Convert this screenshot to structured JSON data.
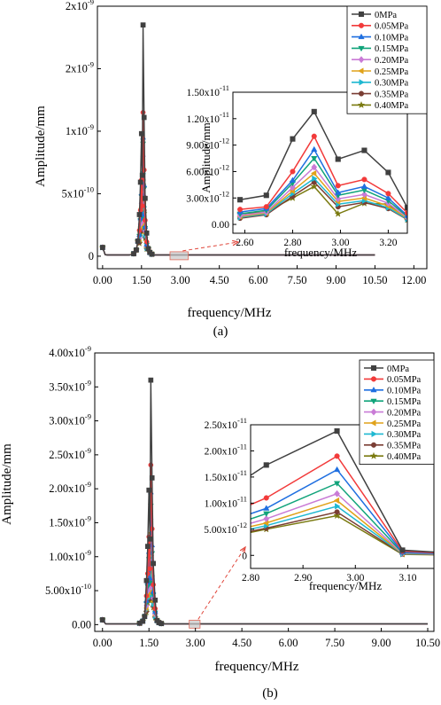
{
  "figure": {
    "panel_a_label": "(a)",
    "panel_b_label": "(b)"
  },
  "chart_data": [
    {
      "panel": "(a)",
      "type": "line",
      "xlabel": "frequency/MHz",
      "ylabel": "Amplitude/mm",
      "xlim": [
        -0.2,
        12.5
      ],
      "ylim": [
        -1e-10,
        2e-09
      ],
      "x_ticks": [
        0,
        1.5,
        3,
        4.5,
        6,
        7.5,
        9,
        10.5,
        12
      ],
      "x_tick_labels": [
        "0.00",
        "1.50",
        "3.00",
        "4.50",
        "6.00",
        "7.50",
        "9.00",
        "10.50",
        "12.00"
      ],
      "y_ticks": [
        0,
        5e-10,
        1e-09,
        1.5e-09,
        2e-09
      ],
      "y_tick_labels": [
        {
          "mant": "0",
          "exp": ""
        },
        {
          "mant": "5x10",
          "exp": "-10"
        },
        {
          "mant": "1x10",
          "exp": "-9"
        },
        {
          "mant": "2x10",
          "exp": "-9"
        },
        {
          "mant": "2x10",
          "exp": "-9"
        }
      ],
      "legend": {
        "position": "top-right",
        "entries": [
          "0MPa",
          "0.05MPa",
          "0.10MPa",
          "0.15MPa",
          "0.20MPa",
          "0.25MPa",
          "0.30MPa",
          "0.35MPa",
          "0.40MPa"
        ]
      },
      "peak_x": 1.56,
      "peak_values": [
        1.85e-09,
        1.15e-09,
        9.5e-10,
        9e-10,
        8e-10,
        7.3e-10,
        6.6e-10,
        6.1e-10,
        5.7e-10
      ],
      "side_peak_fraction": 0.53,
      "baseline": 1e-11,
      "x_end": 10.5,
      "zoom_box": {
        "x": [
          2.6,
          3.3
        ]
      },
      "inset": {
        "xlabel": "frequency/MHz",
        "ylabel": "Amplitude/mm",
        "xlim": [
          2.55,
          3.28
        ],
        "ylim": [
          -1e-12,
          1.5e-11
        ],
        "x_ticks": [
          2.6,
          2.8,
          3.0,
          3.2
        ],
        "x_tick_labels": [
          "2.60",
          "2.80",
          "3.00",
          "3.20"
        ],
        "y_ticks": [
          0,
          3e-12,
          6e-12,
          9e-12,
          1.2e-11,
          1.5e-11
        ],
        "y_tick_labels": [
          {
            "mant": "0.00",
            "exp": ""
          },
          {
            "mant": "3.00x10",
            "exp": "-12"
          },
          {
            "mant": "6.00x10",
            "exp": "-12"
          },
          {
            "mant": "9.00x10",
            "exp": "-12"
          },
          {
            "mant": "1.20x10",
            "exp": "-11"
          },
          {
            "mant": "1.50x10",
            "exp": "-11"
          }
        ],
        "x": [
          2.58,
          2.69,
          2.8,
          2.89,
          2.99,
          3.1,
          3.2,
          3.28
        ],
        "series": [
          {
            "name": "0MPa",
            "values": [
              2.8e-12,
              3.3e-12,
              9.7e-12,
              1.28e-11,
              7.4e-12,
              8.4e-12,
              5.9e-12,
              1.9e-12
            ]
          },
          {
            "name": "0.05MPa",
            "values": [
              1.7e-12,
              2e-12,
              6e-12,
              1e-11,
              4.4e-12,
              5.1e-12,
              3.5e-12,
              1.3e-12
            ]
          },
          {
            "name": "0.10MPa",
            "values": [
              1.4e-12,
              1.8e-12,
              5e-12,
              8.5e-12,
              3.6e-12,
              4.3e-12,
              3e-12,
              1e-12
            ]
          },
          {
            "name": "0.15MPa",
            "values": [
              1.2e-12,
              1.6e-12,
              4.7e-12,
              7.5e-12,
              3.3e-12,
              3.9e-12,
              2.7e-12,
              9e-13
            ]
          },
          {
            "name": "0.20MPa",
            "values": [
              1e-12,
              1.4e-12,
              4.2e-12,
              6.5e-12,
              2.9e-12,
              3.4e-12,
              2.4e-12,
              8e-13
            ]
          },
          {
            "name": "0.25MPa",
            "values": [
              9e-13,
              1.3e-12,
              3.8e-12,
              5.8e-12,
              2.6e-12,
              3e-12,
              2.1e-12,
              7e-13
            ]
          },
          {
            "name": "0.30MPa",
            "values": [
              8e-13,
              1.2e-12,
              3.5e-12,
              5.2e-12,
              2.3e-12,
              2.7e-12,
              1.9e-12,
              6e-13
            ]
          },
          {
            "name": "0.35MPa",
            "values": [
              7e-13,
              1.1e-12,
              3.2e-12,
              4.8e-12,
              2e-12,
              2.5e-12,
              1.8e-12,
              5.5e-13
            ]
          },
          {
            "name": "0.40MPa",
            "values": [
              1.2e-12,
              1.4e-12,
              3e-12,
              4.3e-12,
              1.2e-12,
              2.4e-12,
              2.3e-12,
              5e-13
            ]
          }
        ]
      }
    },
    {
      "panel": "(b)",
      "type": "line",
      "xlabel": "frequency/MHz",
      "ylabel": "Amplitude/mm",
      "xlim": [
        -0.25,
        10.7
      ],
      "ylim": [
        -1e-10,
        4e-09
      ],
      "x_ticks": [
        0,
        1.5,
        3,
        4.5,
        6,
        7.5,
        9,
        10.5
      ],
      "x_tick_labels": [
        "0.00",
        "1.50",
        "3.00",
        "4.50",
        "6.00",
        "7.50",
        "9.00",
        "10.50"
      ],
      "y_ticks": [
        0,
        5e-10,
        1e-09,
        1.5e-09,
        2e-09,
        2.5e-09,
        3e-09,
        3.5e-09,
        4e-09
      ],
      "y_tick_labels": [
        {
          "mant": "0.00",
          "exp": ""
        },
        {
          "mant": "5.00x10",
          "exp": "-10"
        },
        {
          "mant": "1.00x10",
          "exp": "-9"
        },
        {
          "mant": "1.50x10",
          "exp": "-9"
        },
        {
          "mant": "2.00x10",
          "exp": "-9"
        },
        {
          "mant": "2.50x10",
          "exp": "-9"
        },
        {
          "mant": "3.00x10",
          "exp": "-9"
        },
        {
          "mant": "3.50x10",
          "exp": "-9"
        },
        {
          "mant": "4.00x10",
          "exp": "-9"
        }
      ],
      "legend": {
        "position": "top-right",
        "entries": [
          "0MPa",
          "0.05MPa",
          "0.10MPa",
          "0.15MPa",
          "0.20MPa",
          "0.25MPa",
          "0.30MPa",
          "0.35MPa",
          "0.40MPa"
        ]
      },
      "peak_x": 1.56,
      "peak_values": [
        3.6e-09,
        2.35e-09,
        1.95e-09,
        1.75e-09,
        1.55e-09,
        1.35e-09,
        1.2e-09,
        1.1e-09,
        1e-09
      ],
      "side_peak_fraction": 0.55,
      "baseline": 1e-11,
      "x_end": 10.5,
      "zoom_box": {
        "x": [
          2.8,
          3.15
        ]
      },
      "inset": {
        "xlabel": "frequency/MHz",
        "ylabel": "",
        "xlim": [
          2.8,
          3.15
        ],
        "ylim": [
          -2.5e-12,
          2.5e-11
        ],
        "x_ticks": [
          2.8,
          2.9,
          3.0,
          3.1
        ],
        "x_tick_labels": [
          "2.80",
          "2.90",
          "3.00",
          "3.10"
        ],
        "y_ticks": [
          0,
          5e-12,
          1e-11,
          1.5e-11,
          2e-11,
          2.5e-11
        ],
        "y_tick_labels": [
          {
            "mant": "0",
            "exp": ""
          },
          {
            "mant": "5.00x10",
            "exp": "-12"
          },
          {
            "mant": "1.00x10",
            "exp": "-11"
          },
          {
            "mant": "1.50x10",
            "exp": "-11"
          },
          {
            "mant": "2.00x10",
            "exp": "-11"
          },
          {
            "mant": "2.50x10",
            "exp": "-11"
          }
        ],
        "x": [
          2.795,
          2.83,
          2.965,
          3.09,
          3.155
        ],
        "series": [
          {
            "name": "0MPa",
            "values": [
              1.5e-11,
              1.73e-11,
              2.38e-11,
              1e-12,
              6e-13
            ]
          },
          {
            "name": "0.05MPa",
            "values": [
              9.5e-12,
              1.1e-11,
              1.9e-11,
              8e-13,
              5e-13
            ]
          },
          {
            "name": "0.10MPa",
            "values": [
              7.8e-12,
              9e-12,
              1.64e-11,
              6e-13,
              4e-13
            ]
          },
          {
            "name": "0.15MPa",
            "values": [
              6.8e-12,
              8e-12,
              1.38e-11,
              5e-13,
              3.5e-13
            ]
          },
          {
            "name": "0.20MPa",
            "values": [
              6e-12,
              7e-12,
              1.18e-11,
              4e-13,
              3e-13
            ]
          },
          {
            "name": "0.25MPa",
            "values": [
              5.4e-12,
              6.2e-12,
              1.05e-11,
              3.5e-13,
              2.5e-13
            ]
          },
          {
            "name": "0.30MPa",
            "values": [
              4.9e-12,
              5.7e-12,
              9.4e-12,
              3e-13,
              2e-13
            ]
          },
          {
            "name": "0.35MPa",
            "values": [
              4.5e-12,
              5.2e-12,
              8.3e-12,
              2.5e-13,
              1.5e-13
            ]
          },
          {
            "name": "0.40MPa",
            "values": [
              4.3e-12,
              5e-12,
              7.6e-12,
              2e-13,
              1e-13
            ]
          }
        ]
      }
    }
  ],
  "series_style": [
    {
      "color": "#404040",
      "marker": "square"
    },
    {
      "color": "#f23a3a",
      "marker": "circle"
    },
    {
      "color": "#1f6fe0",
      "marker": "triangle-up"
    },
    {
      "color": "#10a37a",
      "marker": "triangle-down"
    },
    {
      "color": "#c97bd6",
      "marker": "diamond"
    },
    {
      "color": "#e0a21a",
      "marker": "triangle-left"
    },
    {
      "color": "#1eb8d1",
      "marker": "triangle-right"
    },
    {
      "color": "#7a3e34",
      "marker": "circle"
    },
    {
      "color": "#7a7a10",
      "marker": "star"
    }
  ]
}
